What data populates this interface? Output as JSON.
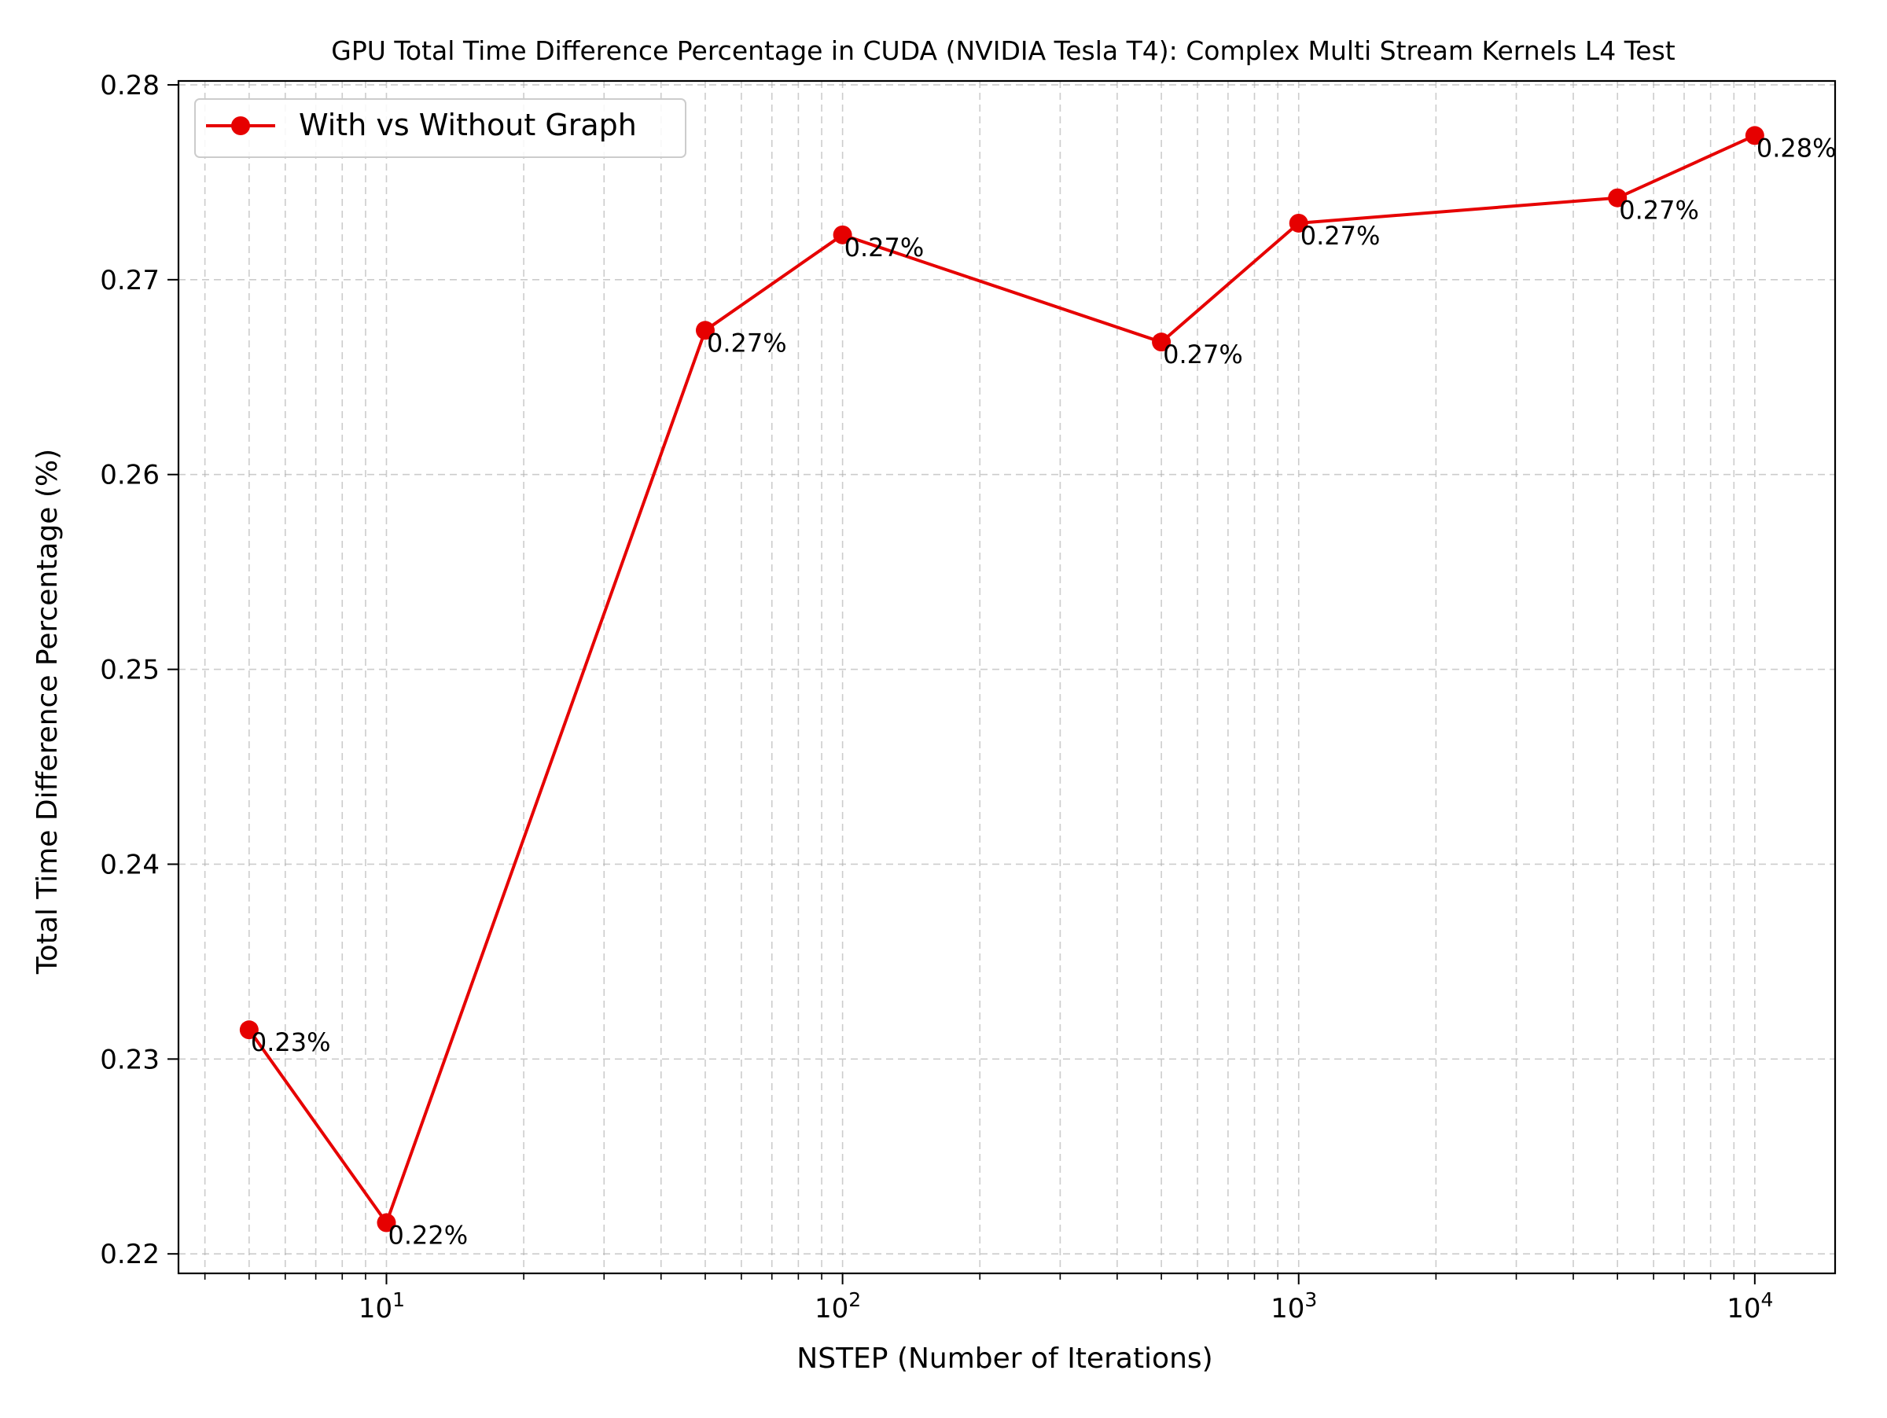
{
  "chart_data": {
    "type": "line",
    "title": "GPU Total Time Difference Percentage in CUDA (NVIDIA Tesla T4): Complex Multi Stream Kernels L4 Test",
    "xlabel": "NSTEP (Number of Iterations)",
    "ylabel": "Total Time Difference Percentage (%)",
    "x_scale": "log",
    "xlim": [
      3.5,
      15000
    ],
    "ylim": [
      0.219,
      0.2802
    ],
    "x_ticks": [
      {
        "value": 10,
        "base": "10",
        "exp": "1"
      },
      {
        "value": 100,
        "base": "10",
        "exp": "2"
      },
      {
        "value": 1000,
        "base": "10",
        "exp": "3"
      },
      {
        "value": 10000,
        "base": "10",
        "exp": "4"
      }
    ],
    "y_ticks": [
      {
        "value": 0.22,
        "label": "0.22"
      },
      {
        "value": 0.23,
        "label": "0.23"
      },
      {
        "value": 0.24,
        "label": "0.24"
      },
      {
        "value": 0.25,
        "label": "0.25"
      },
      {
        "value": 0.26,
        "label": "0.26"
      },
      {
        "value": 0.27,
        "label": "0.27"
      },
      {
        "value": 0.28,
        "label": "0.28"
      }
    ],
    "grid": true,
    "grid_style": "dashed, major and minor",
    "legend_placement": "upper-left",
    "series": [
      {
        "name": "With vs Without Graph",
        "color": "#e60000",
        "marker": "circle",
        "x": [
          5,
          10,
          50,
          100,
          500,
          1000,
          5000,
          10000
        ],
        "y": [
          0.2315,
          0.2216,
          0.2674,
          0.2723,
          0.2668,
          0.2729,
          0.2742,
          0.2774
        ],
        "labels": [
          "0.23%",
          "0.22%",
          "0.27%",
          "0.27%",
          "0.27%",
          "0.27%",
          "0.27%",
          "0.28%"
        ]
      }
    ]
  }
}
